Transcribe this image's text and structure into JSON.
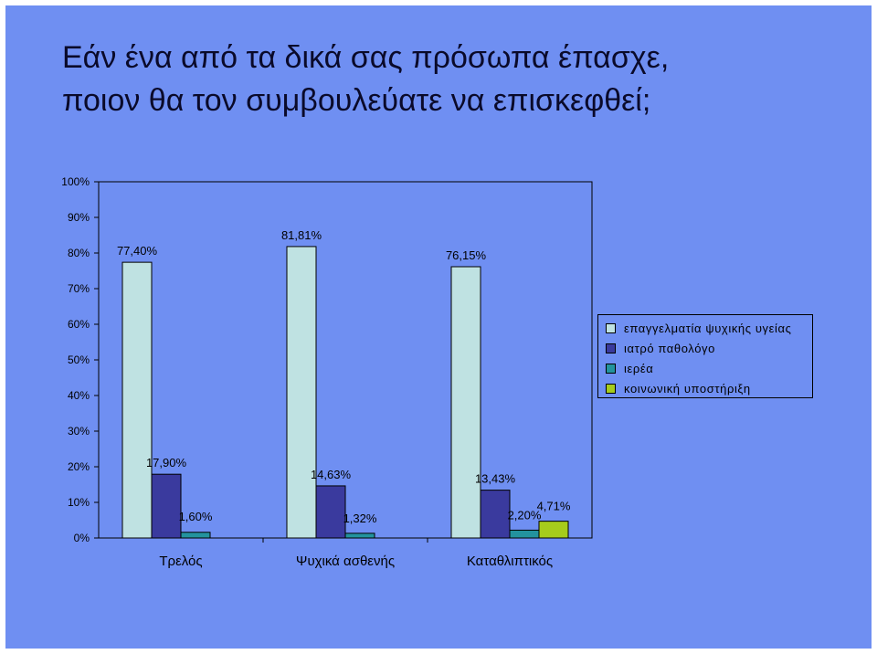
{
  "title_lines": [
    "Εάν ένα από τα δικά σας πρόσωπα έπασχε,",
    "ποιον θα τον συμβουλεύατε να επισκεφθεί;"
  ],
  "chart_data": {
    "type": "bar",
    "categories": [
      "Τρελός",
      "Ψυχικά ασθενής",
      "Καταθλιπτικός"
    ],
    "series": [
      {
        "name": "επαγγελματία ψυχικής υγείας",
        "color": "#bfe2e2",
        "values": [
          77.4,
          81.81,
          76.15
        ],
        "labels": [
          "77,40%",
          "81,81%",
          "76,15%"
        ]
      },
      {
        "name": "ιατρό παθολόγο",
        "color": "#3a3a9e",
        "values": [
          17.9,
          14.63,
          13.43
        ],
        "labels": [
          "17,90%",
          "14,63%",
          "13,43%"
        ]
      },
      {
        "name": "ιερέα",
        "color": "#23939e",
        "values": [
          1.6,
          1.32,
          2.2
        ],
        "labels": [
          "1,60%",
          "1,32%",
          "2,20%"
        ]
      },
      {
        "name": "κοινωνική υποστήριξη",
        "color": "#a6cc1c",
        "values": [
          null,
          null,
          4.71
        ],
        "labels": [
          "",
          "",
          "4,71%"
        ]
      }
    ],
    "ylim": [
      0,
      100
    ],
    "yticks": [
      "0%",
      "10%",
      "20%",
      "30%",
      "40%",
      "50%",
      "60%",
      "70%",
      "80%",
      "90%",
      "100%"
    ],
    "legend_position": "right",
    "grid": false
  }
}
